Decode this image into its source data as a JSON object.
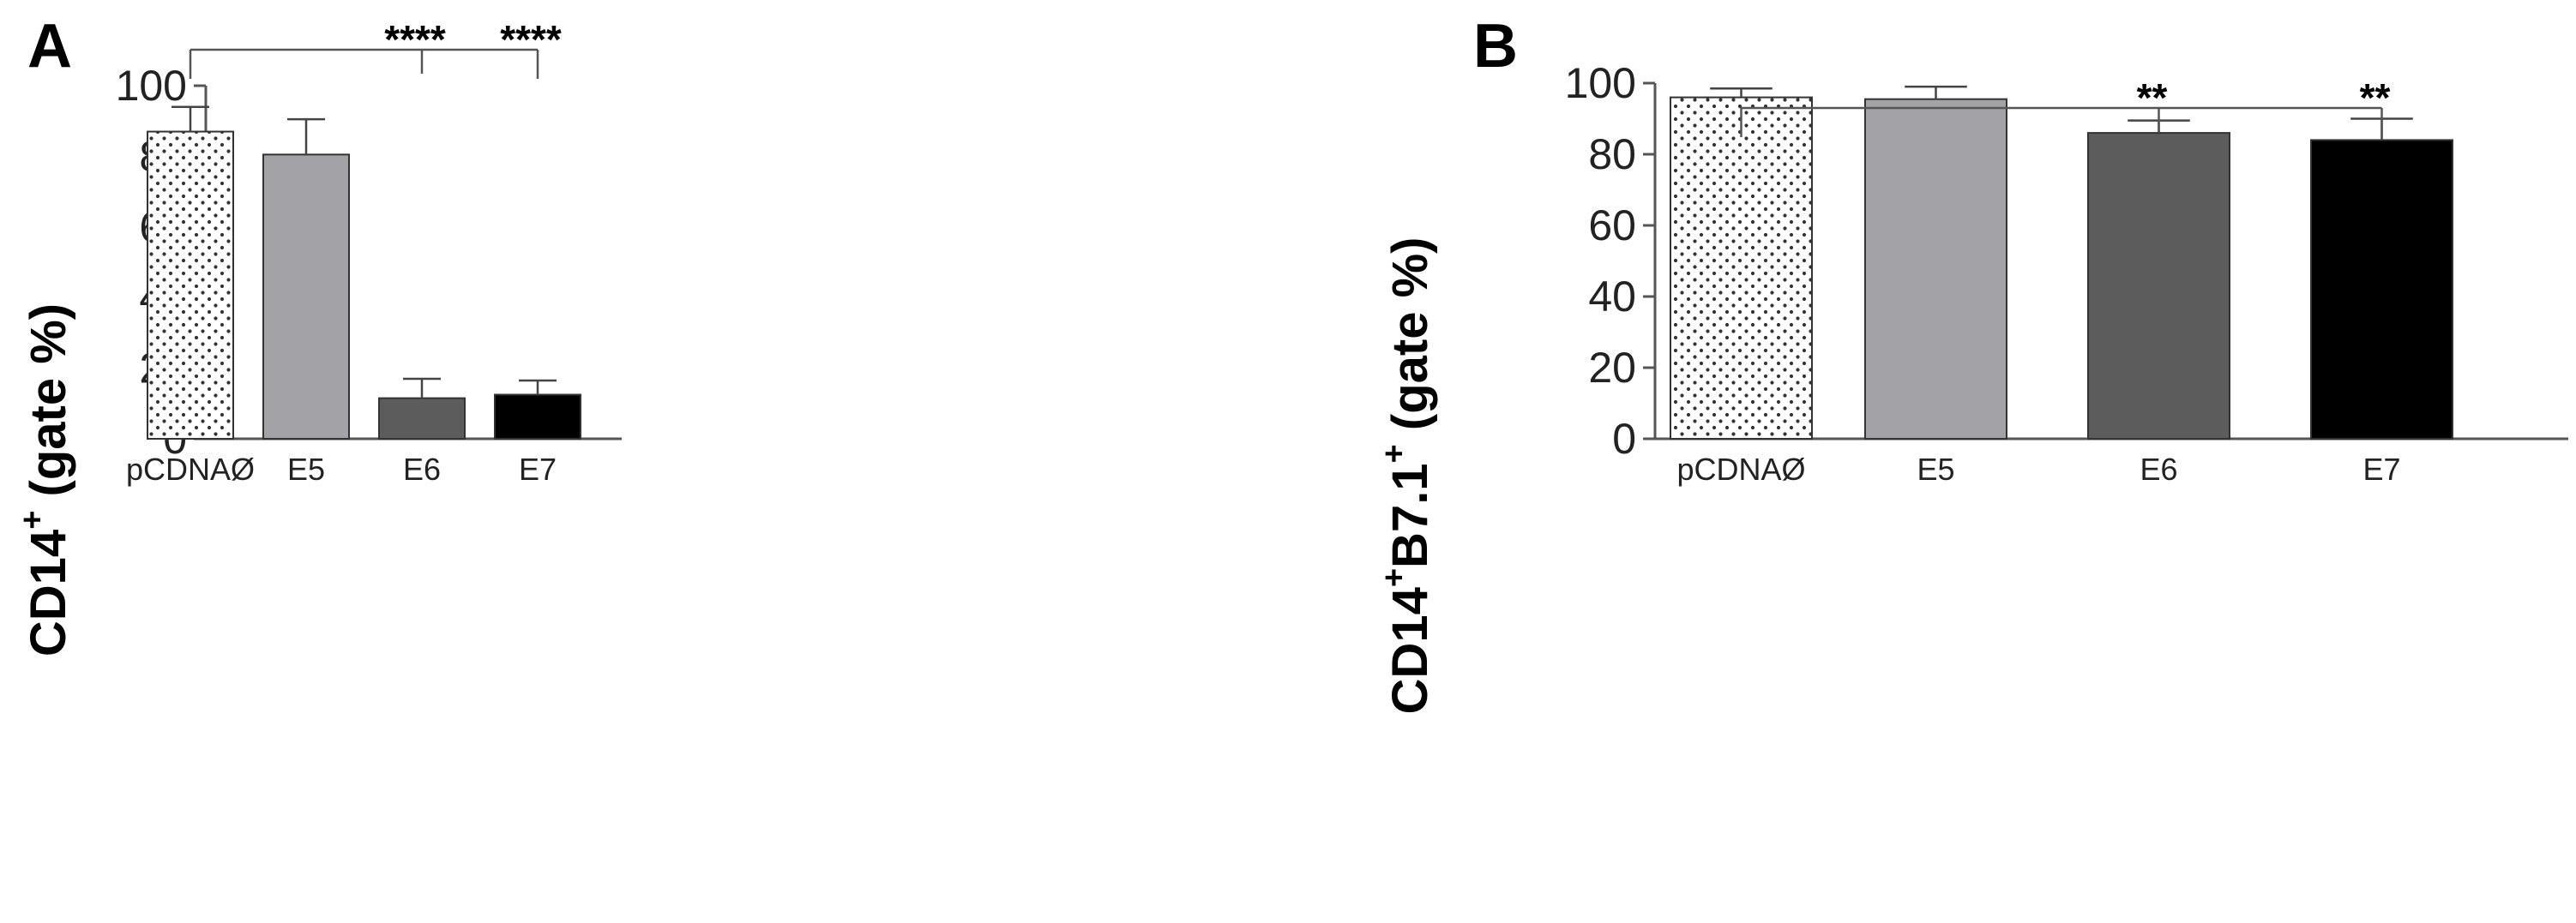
{
  "chart_data": [
    {
      "panel": "A",
      "type": "bar",
      "ylabel_main": "CD14",
      "ylabel_sup": "+",
      "ylabel_rest": " (gate %)",
      "ylim": [
        0,
        100
      ],
      "yticks": [
        0,
        20,
        40,
        60,
        80,
        100
      ],
      "categories": [
        "pCDNAØ",
        "E5",
        "E6",
        "E7"
      ],
      "values": [
        87,
        80.5,
        11.5,
        12.5
      ],
      "errors": [
        7,
        10,
        5.5,
        4
      ],
      "fills": [
        "dots",
        "#a3a3a7",
        "#5c5c5c",
        "#000000"
      ],
      "annotations": [
        {
          "from": 0,
          "to": 2,
          "text": "****"
        },
        {
          "from": 0,
          "to": 3,
          "text": "****"
        }
      ]
    },
    {
      "panel": "B",
      "type": "bar",
      "ylabel_main": "CD14",
      "ylabel_sup": "+",
      "ylabel_main2": "B7.1",
      "ylabel_sup2": "+",
      "ylabel_rest": " (gate %)",
      "ylim": [
        0,
        100
      ],
      "yticks": [
        0,
        20,
        40,
        60,
        80,
        100
      ],
      "categories": [
        "pCDNAØ",
        "E5",
        "E6",
        "E7"
      ],
      "values": [
        96,
        95.5,
        86,
        84
      ],
      "errors": [
        2.5,
        3.5,
        3.5,
        6
      ],
      "fills": [
        "dots",
        "#a3a3a7",
        "#5c5c5c",
        "#000000"
      ],
      "annotations": [
        {
          "from": 0,
          "to": 2,
          "text": "**"
        },
        {
          "from": 0,
          "to": 3,
          "text": "**"
        }
      ]
    }
  ]
}
